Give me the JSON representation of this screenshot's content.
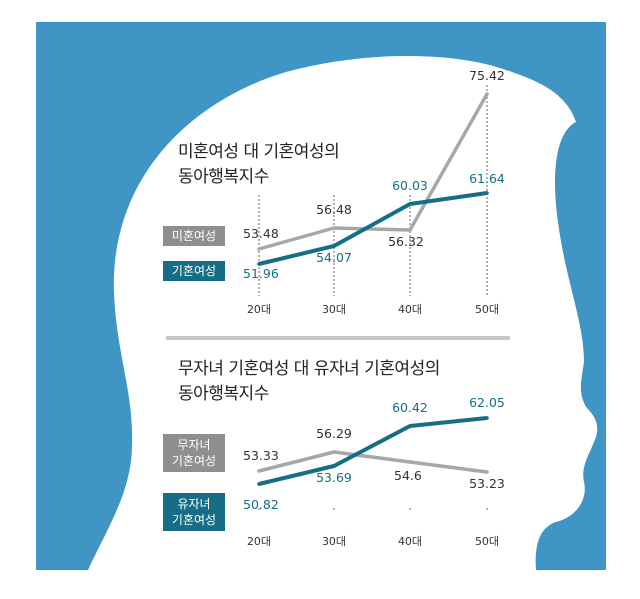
{
  "chart_data": [
    {
      "type": "line",
      "title": "미혼여성 대 기혼여성의",
      "subtitle": "동아행복지수",
      "categories": [
        "20대",
        "30대",
        "40대",
        "50대"
      ],
      "series": [
        {
          "name": "미혼여성",
          "values": [
            53.48,
            56.48,
            56.32,
            75.42
          ],
          "labels": [
            "53.48",
            "56.48",
            "56.32",
            "75.42"
          ],
          "color": "#a6a7a9"
        },
        {
          "name": "기혼여성",
          "values": [
            51.96,
            54.07,
            60.03,
            61.64
          ],
          "labels": [
            "51.96",
            "54.07",
            "60.03",
            "61.64"
          ],
          "color": "#156e86"
        }
      ]
    },
    {
      "type": "line",
      "title": "무자녀 기혼여성 대 유자녀 기혼여성의",
      "subtitle": "동아행복지수",
      "categories": [
        "20대",
        "30대",
        "40대",
        "50대"
      ],
      "series": [
        {
          "name": "무자녀 기혼여성",
          "name_lines": [
            "무자녀",
            "기혼여성"
          ],
          "values": [
            53.33,
            56.29,
            54.6,
            53.23
          ],
          "labels": [
            "53.33",
            "56.29",
            "54.6",
            "53.23"
          ],
          "color": "#a6a7a9"
        },
        {
          "name": "유자녀 기혼여성",
          "name_lines": [
            "유자녀",
            "기혼여성"
          ],
          "values": [
            50.82,
            53.69,
            60.42,
            62.05
          ],
          "labels": [
            "50.82",
            "53.69",
            "60.42",
            "62.05"
          ],
          "color": "#156e86"
        }
      ]
    }
  ],
  "colors": {
    "background": "#3f95c3",
    "silhouette": "#ffffff",
    "gray": "#a6a7a9",
    "blue": "#156e86",
    "tag_gray": "#8e8f91"
  }
}
